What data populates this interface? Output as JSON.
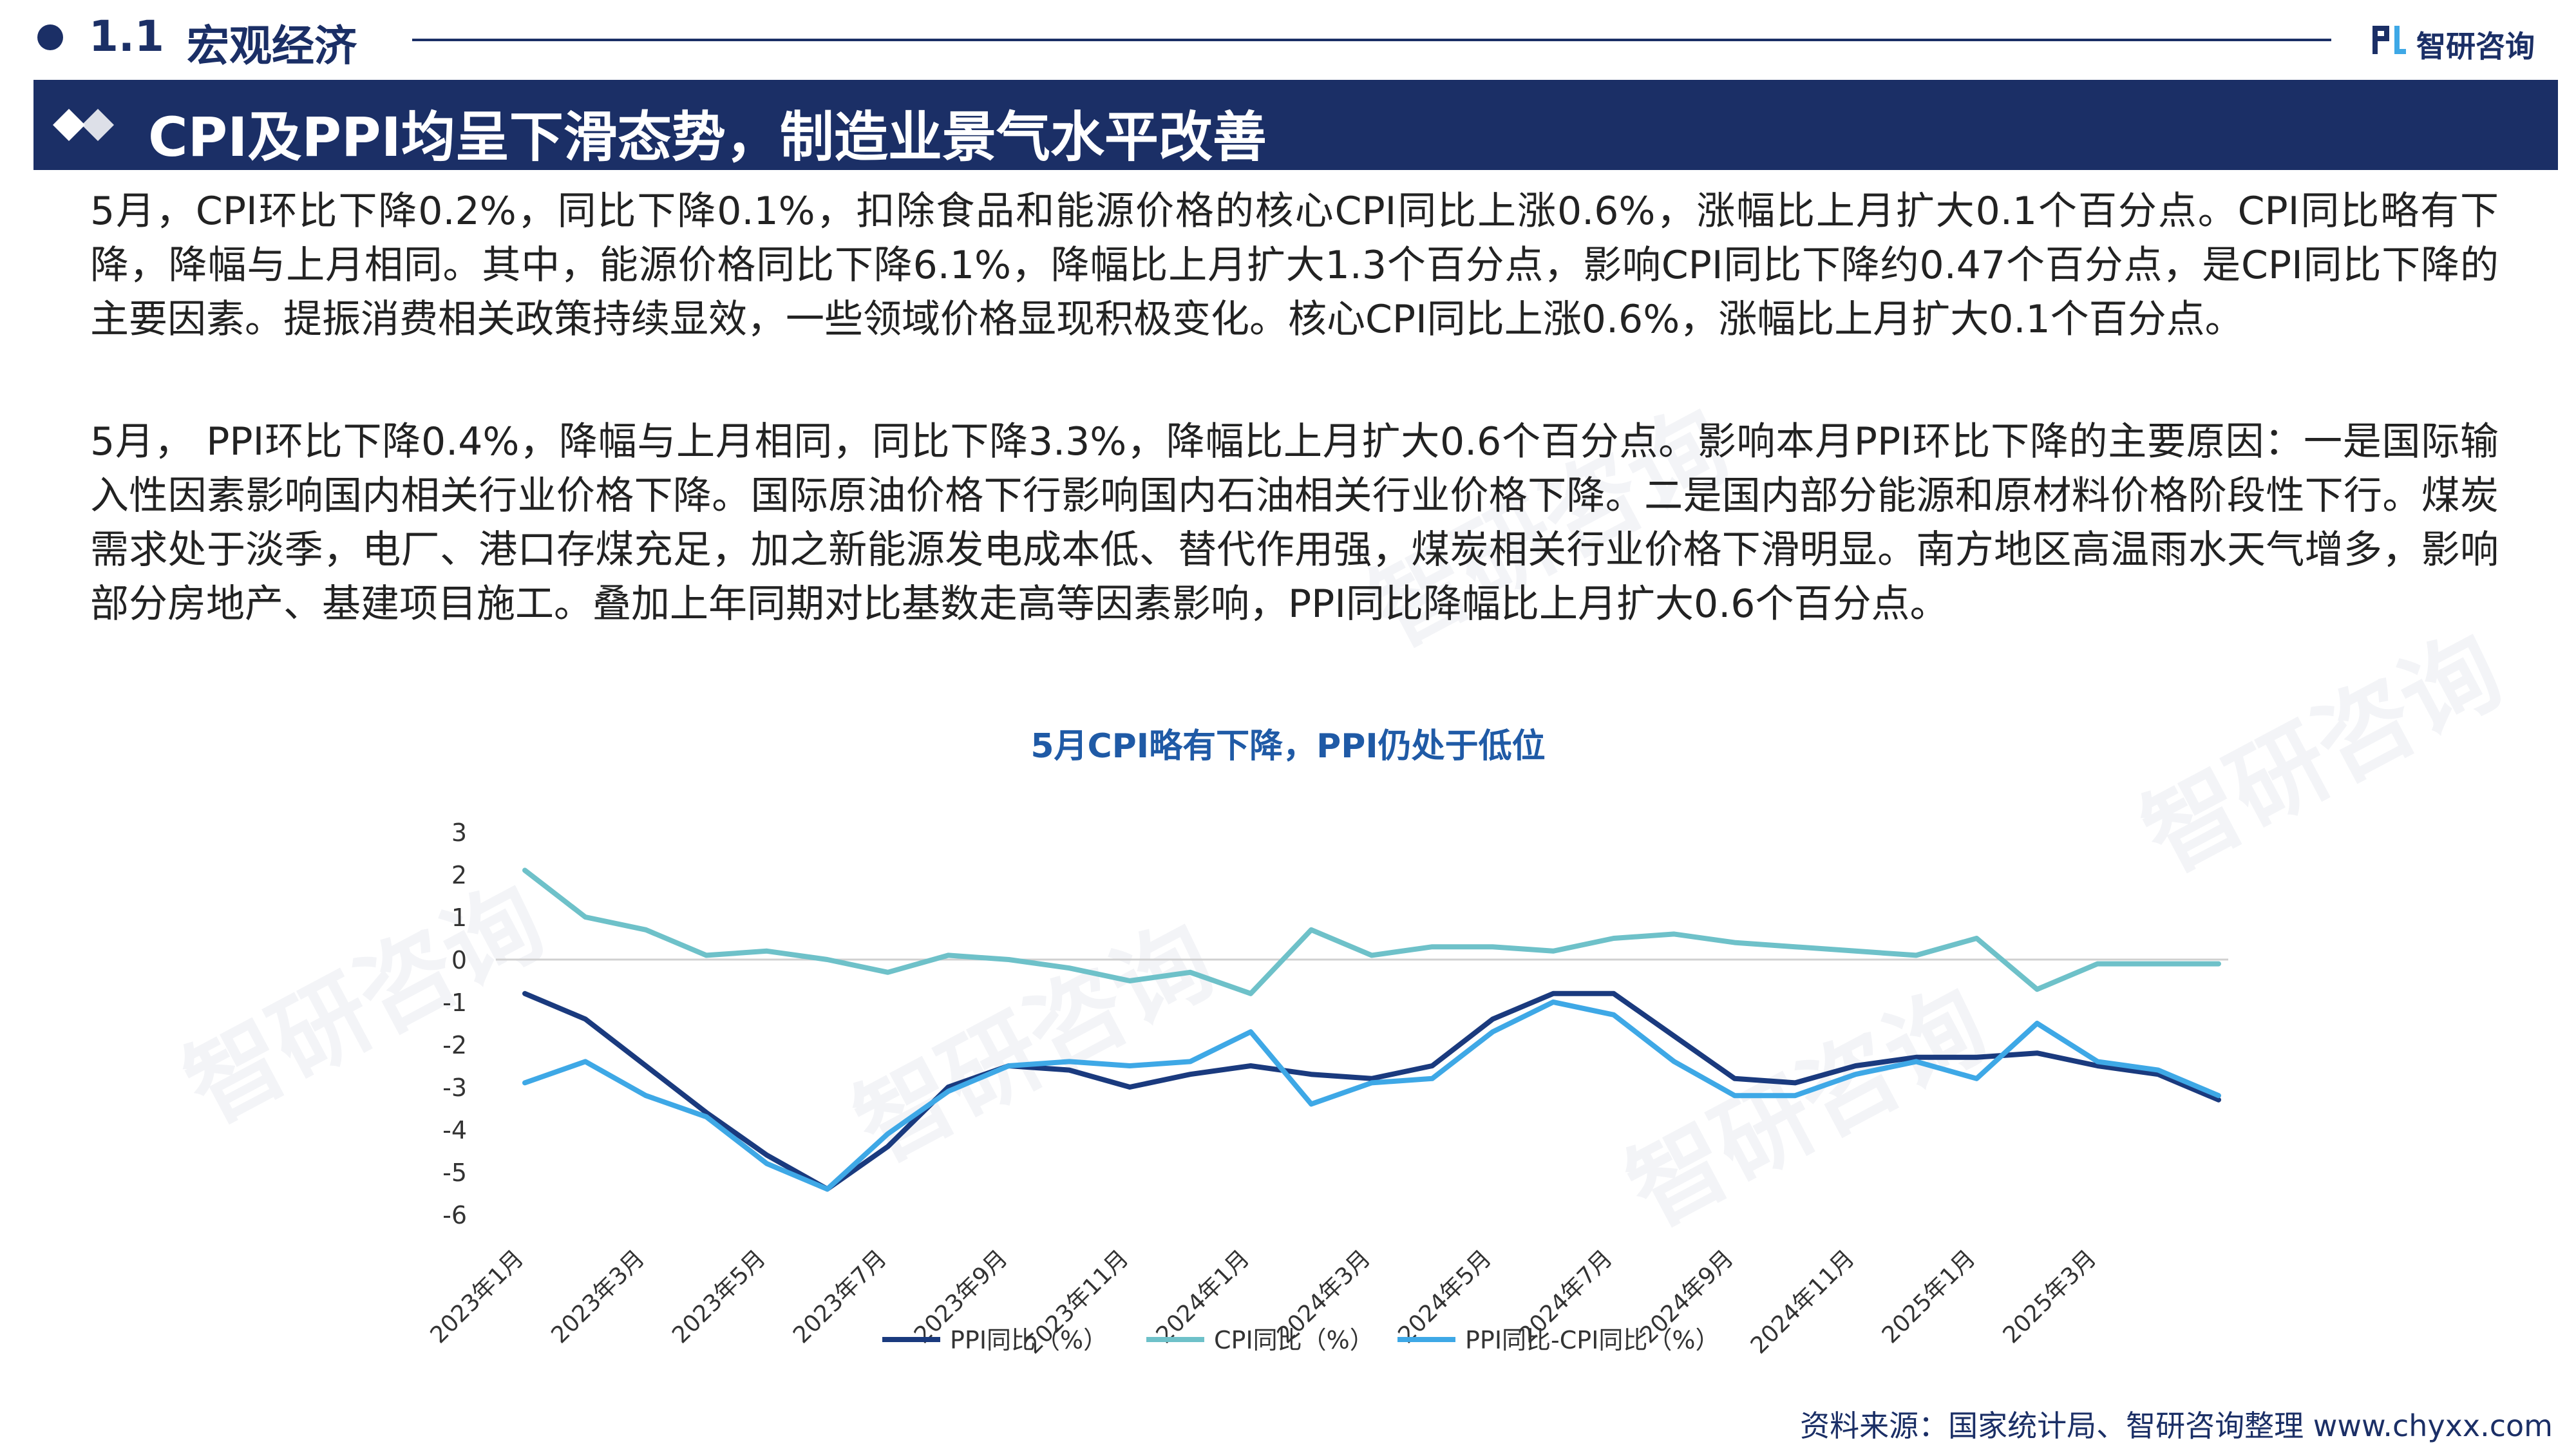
{
  "header": {
    "section_number": "1.1",
    "section_title": "宏观经济",
    "logo_text": "智研咨询",
    "logo_icon": "zhiyan-logo-icon"
  },
  "banner": {
    "title": "CPI及PPI均呈下滑态势，制造业景气水平改善"
  },
  "body": {
    "paragraph1": "5月，CPI环比下降0.2%，同比下降0.1%，扣除食品和能源价格的核心CPI同比上涨0.6%，涨幅比上月扩大0.1个百分点。CPI同比略有下降，降幅与上月相同。其中，能源价格同比下降6.1%，降幅比上月扩大1.3个百分点，影响CPI同比下降约0.47个百分点，是CPI同比下降的主要因素。提振消费相关政策持续显效，一些领域价格显现积极变化。核心CPI同比上涨0.6%，涨幅比上月扩大0.1个百分点。",
    "paragraph2": "5月， PPI环比下降0.4%，降幅与上月相同，同比下降3.3%，降幅比上月扩大0.6个百分点。影响本月PPI环比下降的主要原因：一是国际输入性因素影响国内相关行业价格下降。国际原油价格下行影响国内石油相关行业价格下降。二是国内部分能源和原材料价格阶段性下行。煤炭需求处于淡季，电厂、港口存煤充足，加之新能源发电成本低、替代作用强，煤炭相关行业价格下滑明显。南方地区高温雨水天气增多，影响部分房地产、基建项目施工。叠加上年同期对比基数走高等因素影响，PPI同比降幅比上月扩大0.6个百分点。"
  },
  "chart_data": {
    "type": "line",
    "title": "5月CPI略有下降，PPI仍处于低位",
    "x": [
      "2023年1月",
      "2023年2月",
      "2023年3月",
      "2023年4月",
      "2023年5月",
      "2023年6月",
      "2023年7月",
      "2023年8月",
      "2023年9月",
      "2023年10月",
      "2023年11月",
      "2023年12月",
      "2024年1月",
      "2024年2月",
      "2024年3月",
      "2024年4月",
      "2024年5月",
      "2024年6月",
      "2024年7月",
      "2024年8月",
      "2024年9月",
      "2024年10月",
      "2024年11月",
      "2024年12月",
      "2025年1月",
      "2025年2月",
      "2025年3月",
      "2025年4月",
      "2025年5月"
    ],
    "x_tick_labels": [
      "2023年1月",
      "2023年3月",
      "2023年5月",
      "2023年7月",
      "2023年9月",
      "2023年11月",
      "2024年1月",
      "2024年3月",
      "2024年5月",
      "2024年7月",
      "2024年9月",
      "2024年11月",
      "2025年1月",
      "2025年3月"
    ],
    "y_ticks": [
      3,
      2,
      1,
      0,
      -1,
      -2,
      -3,
      -4,
      -5,
      -6
    ],
    "ylim": [
      -6,
      3
    ],
    "grid": false,
    "legend_position": "bottom",
    "series": [
      {
        "name": "PPI同比（%）",
        "color": "#1a3a7e",
        "values": [
          -0.8,
          -1.4,
          -2.5,
          -3.6,
          -4.6,
          -5.4,
          -4.4,
          -3.0,
          -2.5,
          -2.6,
          -3.0,
          -2.7,
          -2.5,
          -2.7,
          -2.8,
          -2.5,
          -1.4,
          -0.8,
          -0.8,
          -1.8,
          -2.8,
          -2.9,
          -2.5,
          -2.3,
          -2.3,
          -2.2,
          -2.5,
          -2.7,
          -3.3
        ]
      },
      {
        "name": "CPI同比（%）",
        "color": "#6ec1c9",
        "values": [
          2.1,
          1.0,
          0.7,
          0.1,
          0.2,
          0.0,
          -0.3,
          0.1,
          0.0,
          -0.2,
          -0.5,
          -0.3,
          -0.8,
          0.7,
          0.1,
          0.3,
          0.3,
          0.2,
          0.5,
          0.6,
          0.4,
          0.3,
          0.2,
          0.1,
          0.5,
          -0.7,
          -0.1,
          -0.1,
          -0.1
        ]
      },
      {
        "name": "PPI同比-CPI同比（%）",
        "color": "#3ea8e6",
        "values": [
          -2.9,
          -2.4,
          -3.2,
          -3.7,
          -4.8,
          -5.4,
          -4.1,
          -3.1,
          -2.5,
          -2.4,
          -2.5,
          -2.4,
          -1.7,
          -3.4,
          -2.9,
          -2.8,
          -1.7,
          -1.0,
          -1.3,
          -2.4,
          -3.2,
          -3.2,
          -2.7,
          -2.4,
          -2.8,
          -1.5,
          -2.4,
          -2.6,
          -3.2
        ]
      }
    ]
  },
  "source": "资料来源：国家统计局、智研咨询整理   www.chyxx.com",
  "watermark": "智研咨询"
}
